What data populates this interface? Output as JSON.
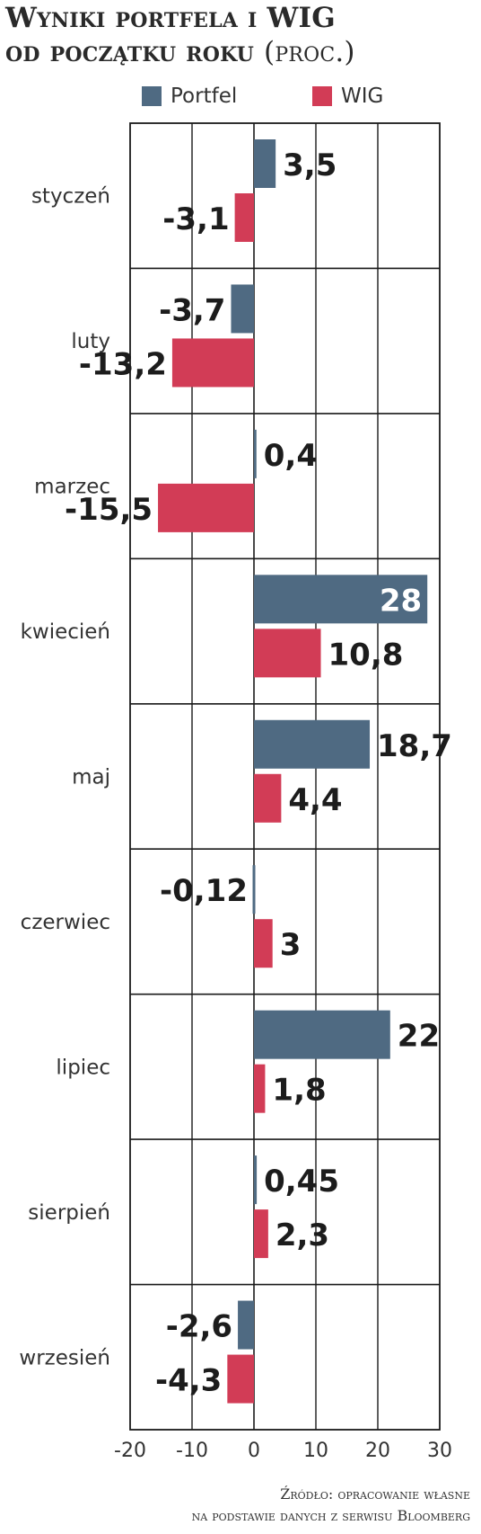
{
  "header": {
    "title_line1": "Wyniki portfela i WIG",
    "title_line2": "od początku roku",
    "title_unit": "(proc.)"
  },
  "legend": {
    "portfel_label": "Portfel",
    "wig_label": "WIG"
  },
  "colors": {
    "portfel": "#4f6a82",
    "wig": "#d23c56",
    "grid": "#1a1a1a",
    "white_label": "#ffffff"
  },
  "chart_data": {
    "type": "bar",
    "orientation": "horizontal",
    "title": "Wyniki portfela i WIG od początku roku (proc.)",
    "categories": [
      "styczeń",
      "luty",
      "marzec",
      "kwiecień",
      "maj",
      "czerwiec",
      "lipiec",
      "sierpień",
      "wrzesień"
    ],
    "series": [
      {
        "name": "Portfel",
        "values": [
          3.5,
          -3.7,
          0.4,
          28,
          18.7,
          -0.12,
          22,
          0.45,
          -2.6
        ],
        "labels": [
          "3,5",
          "-3,7",
          "0,4",
          "28",
          "18,7",
          "-0,12",
          "22",
          "0,45",
          "-2,6"
        ]
      },
      {
        "name": "WIG",
        "values": [
          -3.1,
          -13.2,
          -15.5,
          10.8,
          4.4,
          3,
          1.8,
          2.3,
          -4.3
        ],
        "labels": [
          "-3,1",
          "-13,2",
          "-15,5",
          "10,8",
          "4,4",
          "3",
          "1,8",
          "2,3",
          "-4,3"
        ]
      }
    ],
    "xlim": [
      -20,
      30
    ],
    "xticks": [
      "-20",
      "-10",
      "0",
      "10",
      "20",
      "30"
    ],
    "grid": true,
    "legend_position": "top"
  },
  "footer": {
    "source_line1": "Źródło: opracowanie własne",
    "source_line2": "na podstawie danych z serwisu Bloomberg"
  }
}
